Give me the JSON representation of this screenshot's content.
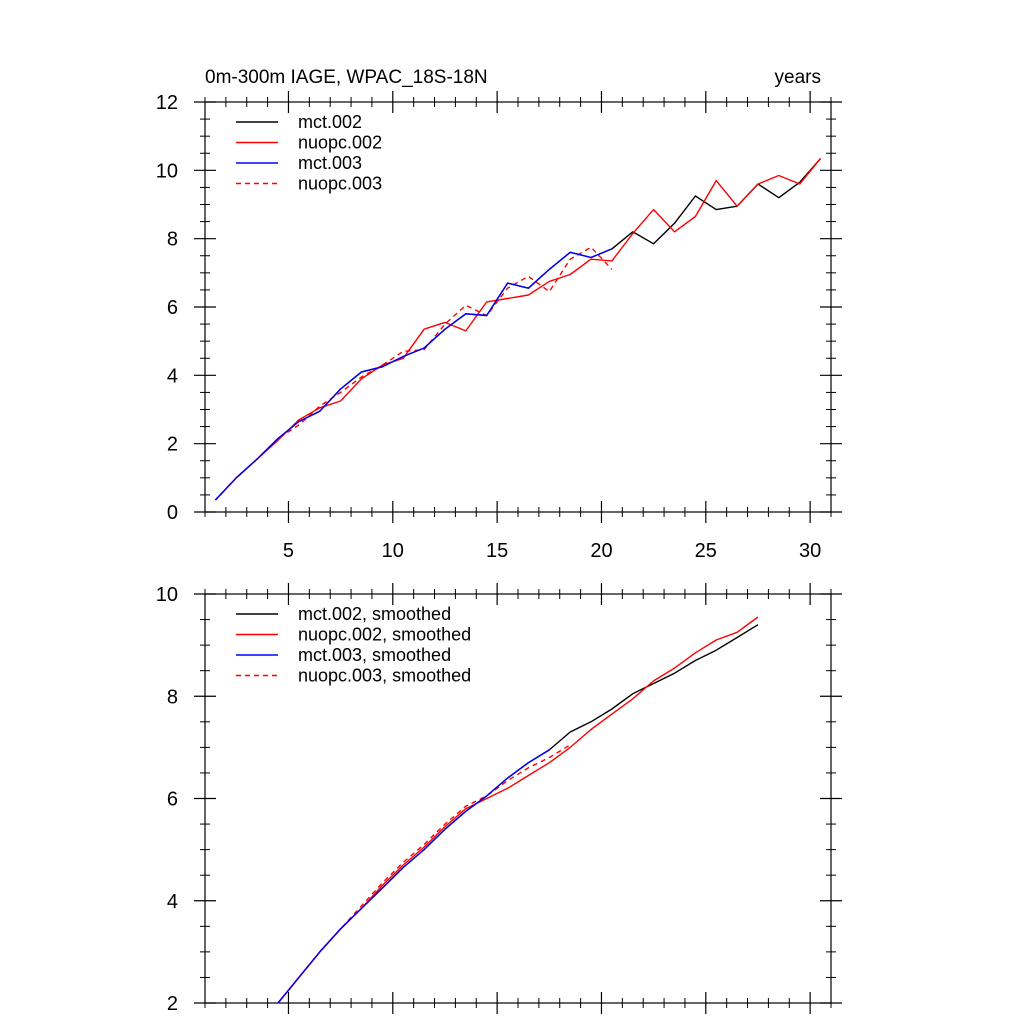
{
  "chart_data": [
    {
      "type": "line",
      "title_left": "0m-300m IAGE, WPAC_18S-18N",
      "title_right": "years",
      "xlabel": "",
      "ylabel": "",
      "xlim": [
        1,
        31
      ],
      "ylim": [
        0,
        12
      ],
      "xticks": [
        5,
        10,
        15,
        20,
        25,
        30
      ],
      "yticks": [
        0,
        2,
        4,
        6,
        8,
        10,
        12
      ],
      "legend_position": "top-left",
      "series": [
        {
          "name": "mct.002",
          "color": "#000000",
          "dash": "solid",
          "x": [
            1.5,
            2.5,
            3.5,
            4.5,
            5.5,
            6.5,
            7.5,
            8.5,
            9.5,
            10.5,
            11.5,
            12.5,
            13.5,
            14.5,
            15.5,
            16.5,
            17.5,
            18.5,
            19.5,
            20.5,
            21.5,
            22.5,
            23.5,
            24.5,
            25.5,
            26.5,
            27.5,
            28.5,
            29.5,
            30.5
          ],
          "values": [
            0.35,
            1.0,
            1.55,
            2.15,
            2.65,
            2.95,
            3.6,
            4.1,
            4.25,
            4.55,
            4.8,
            5.35,
            5.8,
            5.75,
            6.7,
            6.55,
            7.1,
            7.6,
            7.45,
            7.7,
            8.2,
            7.85,
            8.45,
            9.25,
            8.85,
            8.95,
            9.6,
            9.2,
            9.65,
            10.35
          ]
        },
        {
          "name": "nuopc.002",
          "color": "#ff0000",
          "dash": "solid",
          "x": [
            1.5,
            2.5,
            3.5,
            4.5,
            5.5,
            6.5,
            7.5,
            8.5,
            9.5,
            10.5,
            11.5,
            12.5,
            13.5,
            14.5,
            15.5,
            16.5,
            17.5,
            18.5,
            19.5,
            20.5,
            21.5,
            22.5,
            23.5,
            24.5,
            25.5,
            26.5,
            27.5,
            28.5,
            29.5,
            30.5
          ],
          "values": [
            0.35,
            1.0,
            1.55,
            2.1,
            2.7,
            3.05,
            3.25,
            3.9,
            4.3,
            4.5,
            5.35,
            5.55,
            5.3,
            6.15,
            6.25,
            6.35,
            6.75,
            6.95,
            7.4,
            7.35,
            8.15,
            8.85,
            8.2,
            8.65,
            9.7,
            8.95,
            9.6,
            9.85,
            9.6,
            10.35
          ]
        },
        {
          "name": "mct.003",
          "color": "#0000ff",
          "dash": "solid",
          "x": [
            1.5,
            2.5,
            3.5,
            4.5,
            5.5,
            6.5,
            7.5,
            8.5,
            9.5,
            10.5,
            11.5,
            12.5,
            13.5,
            14.5,
            15.5,
            16.5,
            17.5,
            18.5,
            19.5,
            20.5
          ],
          "values": [
            0.35,
            1.0,
            1.55,
            2.15,
            2.65,
            2.95,
            3.6,
            4.1,
            4.25,
            4.55,
            4.8,
            5.35,
            5.8,
            5.75,
            6.7,
            6.55,
            7.1,
            7.6,
            7.45,
            7.7
          ]
        },
        {
          "name": "nuopc.003",
          "color": "#ff0000",
          "dash": "dashed",
          "x": [
            1.5,
            2.5,
            3.5,
            4.5,
            5.5,
            6.5,
            7.5,
            8.5,
            9.5,
            10.5,
            11.5,
            12.5,
            13.5,
            14.5,
            15.5,
            16.5,
            17.5,
            18.5,
            19.5,
            20.5
          ],
          "values": [
            0.35,
            1.0,
            1.55,
            2.15,
            2.55,
            3.1,
            3.5,
            3.95,
            4.3,
            4.7,
            4.75,
            5.5,
            6.05,
            5.75,
            6.55,
            6.9,
            6.45,
            7.4,
            7.75,
            7.1
          ]
        }
      ]
    },
    {
      "type": "line",
      "title_left": "",
      "title_right": "",
      "xlabel": "",
      "ylabel": "",
      "xlim": [
        1,
        31
      ],
      "ylim": [
        2,
        10
      ],
      "xticks": [
        5,
        10,
        15,
        20,
        25,
        30
      ],
      "yticks": [
        2,
        4,
        6,
        8,
        10
      ],
      "legend_position": "top-left",
      "series": [
        {
          "name": "mct.002, smoothed",
          "color": "#000000",
          "dash": "solid",
          "x": [
            4.5,
            5.5,
            6.5,
            7.5,
            8.5,
            9.5,
            10.5,
            11.5,
            12.5,
            13.5,
            14.5,
            15.5,
            16.5,
            17.5,
            18.5,
            19.5,
            20.5,
            21.5,
            22.5,
            23.5,
            24.5,
            25.5,
            26.5,
            27.5
          ],
          "values": [
            2.0,
            2.5,
            3.0,
            3.45,
            3.85,
            4.25,
            4.65,
            5.0,
            5.4,
            5.75,
            6.05,
            6.4,
            6.7,
            6.95,
            7.3,
            7.5,
            7.75,
            8.05,
            8.25,
            8.45,
            8.7,
            8.9,
            9.15,
            9.4
          ]
        },
        {
          "name": "nuopc.002, smoothed",
          "color": "#ff0000",
          "dash": "solid",
          "x": [
            4.5,
            5.5,
            6.5,
            7.5,
            8.5,
            9.5,
            10.5,
            11.5,
            12.5,
            13.5,
            14.5,
            15.5,
            16.5,
            17.5,
            18.5,
            19.5,
            20.5,
            21.5,
            22.5,
            23.5,
            24.5,
            25.5,
            26.5,
            27.5
          ],
          "values": [
            2.0,
            2.5,
            3.0,
            3.45,
            3.85,
            4.3,
            4.7,
            5.05,
            5.45,
            5.8,
            6.0,
            6.2,
            6.45,
            6.7,
            7.0,
            7.35,
            7.65,
            7.95,
            8.3,
            8.55,
            8.85,
            9.1,
            9.25,
            9.55
          ]
        },
        {
          "name": "mct.003, smoothed",
          "color": "#0000ff",
          "dash": "solid",
          "x": [
            4.5,
            5.5,
            6.5,
            7.5,
            8.5,
            9.5,
            10.5,
            11.5,
            12.5,
            13.5,
            14.5,
            15.5,
            16.5,
            17.5
          ],
          "values": [
            2.0,
            2.5,
            3.0,
            3.45,
            3.85,
            4.25,
            4.65,
            5.0,
            5.4,
            5.75,
            6.05,
            6.4,
            6.7,
            6.95
          ]
        },
        {
          "name": "nuopc.003, smoothed",
          "color": "#ff0000",
          "dash": "dashed",
          "x": [
            4.5,
            5.5,
            6.5,
            7.5,
            8.5,
            9.5,
            10.5,
            11.5,
            12.5,
            13.5,
            14.5,
            15.5,
            16.5,
            17.5,
            18.5
          ],
          "values": [
            2.0,
            2.5,
            3.0,
            3.45,
            3.9,
            4.35,
            4.75,
            5.1,
            5.5,
            5.85,
            6.05,
            6.35,
            6.6,
            6.8,
            7.05
          ]
        }
      ]
    }
  ]
}
